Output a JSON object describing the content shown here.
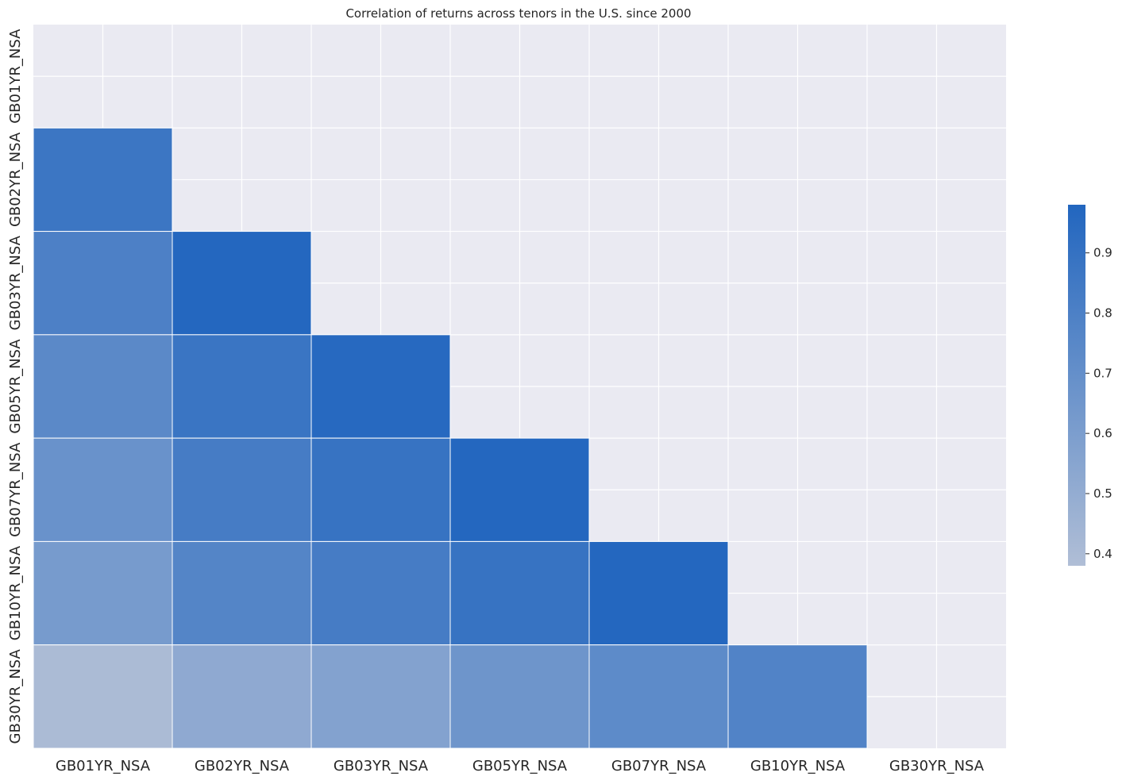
{
  "chart_data": {
    "type": "heatmap",
    "title": "Correlation of returns across tenors in the U.S. since 2000",
    "xlabel": "",
    "ylabel": "",
    "x_labels": [
      "GB01YR_NSA",
      "GB02YR_NSA",
      "GB03YR_NSA",
      "GB05YR_NSA",
      "GB07YR_NSA",
      "GB10YR_NSA",
      "GB30YR_NSA"
    ],
    "y_labels": [
      "GB01YR_NSA",
      "GB02YR_NSA",
      "GB03YR_NSA",
      "GB05YR_NSA",
      "GB07YR_NSA",
      "GB10YR_NSA",
      "GB30YR_NSA"
    ],
    "mask": "upper-triangle-including-diagonal",
    "values": [
      [
        null,
        null,
        null,
        null,
        null,
        null,
        null
      ],
      [
        0.87,
        null,
        null,
        null,
        null,
        null,
        null
      ],
      [
        0.8,
        0.97,
        null,
        null,
        null,
        null,
        null
      ],
      [
        0.74,
        0.88,
        0.96,
        null,
        null,
        null,
        null
      ],
      [
        0.68,
        0.83,
        0.89,
        0.97,
        null,
        null,
        null
      ],
      [
        0.62,
        0.77,
        0.83,
        0.89,
        0.97,
        null,
        null
      ],
      [
        0.4,
        0.52,
        0.57,
        0.66,
        0.73,
        0.78,
        null
      ]
    ],
    "colorbar": {
      "min": 0.38,
      "max": 0.98,
      "ticks": [
        0.4,
        0.5,
        0.6,
        0.7,
        0.8,
        0.9
      ],
      "tick_labels": [
        "0.4",
        "0.5",
        "0.6",
        "0.7",
        "0.8",
        "0.9"
      ],
      "low_color": "#b0bed6",
      "high_color": "#2266bf"
    },
    "grid": true,
    "background_color": "#eaeaf2"
  }
}
